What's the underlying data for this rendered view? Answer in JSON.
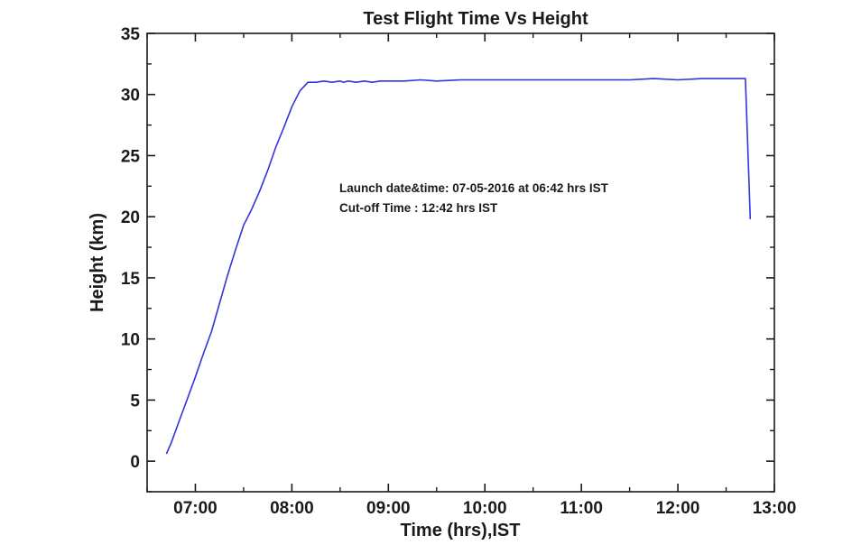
{
  "chart_data": {
    "type": "line",
    "title": "Test Flight Time Vs Height",
    "xlabel": "Time (hrs),IST",
    "ylabel": "Height (km)",
    "xlim": [
      "06:30",
      "13:00"
    ],
    "ylim": [
      -2.5,
      35
    ],
    "x_ticks": [
      "07:00",
      "08:00",
      "09:00",
      "10:00",
      "11:00",
      "12:00",
      "13:00"
    ],
    "y_ticks": [
      0,
      5,
      10,
      15,
      20,
      25,
      30,
      35
    ],
    "grid": false,
    "line_color": "#3333dd",
    "annotations": [
      "Launch date&time: 07-05-2016 at 06:42 hrs IST",
      "Cut-off Time : 12:42 hrs IST"
    ],
    "series": [
      {
        "x": [
          "06:42",
          "06:45",
          "06:50",
          "06:55",
          "07:00",
          "07:05",
          "07:10",
          "07:15",
          "07:20",
          "07:25",
          "07:30",
          "07:35",
          "07:40",
          "07:45",
          "07:50",
          "07:55",
          "08:00",
          "08:05",
          "08:10",
          "08:15",
          "08:20",
          "08:25",
          "08:30",
          "08:32",
          "08:35",
          "08:40",
          "08:45",
          "08:50",
          "08:55",
          "09:00",
          "09:10",
          "09:20",
          "09:30",
          "09:45",
          "10:00",
          "10:15",
          "10:30",
          "10:45",
          "11:00",
          "11:15",
          "11:30",
          "11:45",
          "12:00",
          "12:15",
          "12:30",
          "12:40",
          "12:42",
          "12:45"
        ],
        "y": [
          0.6,
          1.5,
          3.3,
          5.1,
          6.9,
          8.8,
          10.6,
          12.9,
          15.2,
          17.3,
          19.3,
          20.6,
          22.1,
          23.8,
          25.7,
          27.3,
          29.0,
          30.3,
          31.0,
          31.0,
          31.1,
          31.0,
          31.1,
          31.0,
          31.1,
          31.0,
          31.1,
          31.0,
          31.1,
          31.1,
          31.1,
          31.2,
          31.1,
          31.2,
          31.2,
          31.2,
          31.2,
          31.2,
          31.2,
          31.2,
          31.2,
          31.3,
          31.2,
          31.3,
          31.3,
          31.3,
          31.3,
          19.8
        ]
      }
    ]
  }
}
